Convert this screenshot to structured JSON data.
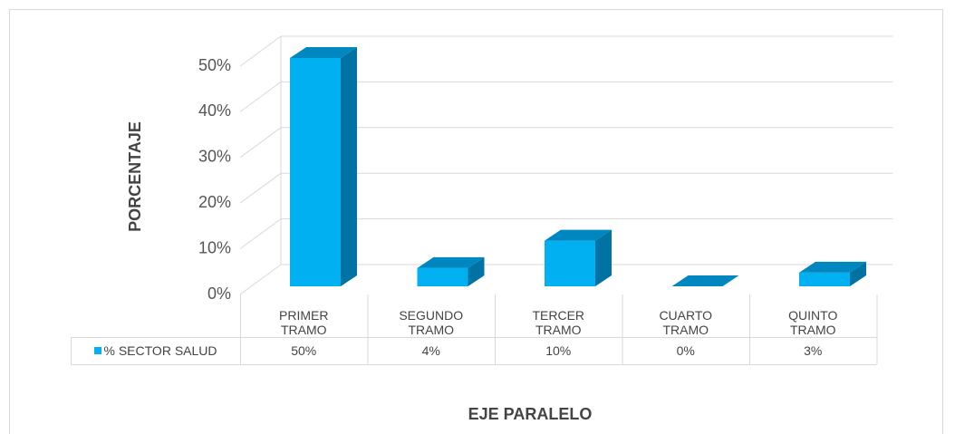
{
  "chart_data": {
    "type": "bar3d",
    "y_axis_label": "PORCENTAJE",
    "x_axis_label": "EJE PARALELO",
    "categories": [
      "PRIMER TRAMO",
      "SEGUNDO TRAMO",
      "TERCER TRAMO",
      "CUARTO TRAMO",
      "QUINTO TRAMO"
    ],
    "series": [
      {
        "name": "% SECTOR SALUD",
        "color": "#00b0f0",
        "values": [
          50,
          4,
          10,
          0,
          3
        ],
        "value_labels": [
          "50%",
          "4%",
          "10%",
          "0%",
          "3%"
        ]
      }
    ],
    "ylim": [
      0,
      50
    ],
    "yticks": [
      {
        "value": 0,
        "label": "0%"
      },
      {
        "value": 10,
        "label": "10%"
      },
      {
        "value": 20,
        "label": "20%"
      },
      {
        "value": 30,
        "label": "30%"
      },
      {
        "value": 40,
        "label": "40%"
      },
      {
        "value": 50,
        "label": "50%"
      }
    ],
    "grid": true,
    "legend": "table"
  }
}
